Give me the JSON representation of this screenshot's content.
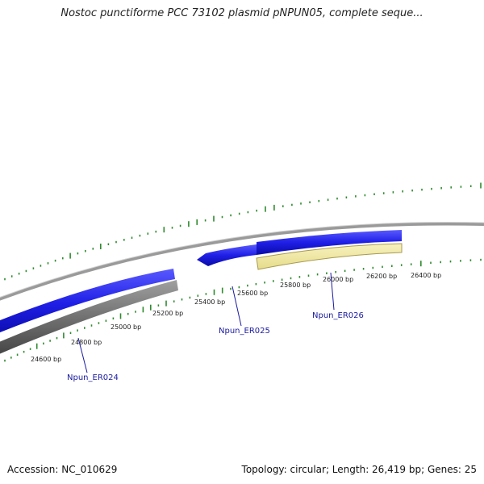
{
  "title": "Nostoc punctiforme PCC 73102 plasmid pNPUN05, complete seque...",
  "footer": {
    "accession": "Accession: NC_010629",
    "summary": "Topology: circular; Length: 26,419 bp; Genes: 25"
  },
  "colors": {
    "backbone": "#8c8c8c",
    "forward_gene": "#1f1fe6",
    "reverse_gene": "#6e6e6e",
    "highlight_gene": "#f2eba0",
    "gc_ticks": "#2e8b2e",
    "label_line": "#1a1aa0"
  },
  "scale": {
    "tick_labels": [
      "24600 bp",
      "24800 bp",
      "25000 bp",
      "25200 bp",
      "25400 bp",
      "25600 bp",
      "25800 bp",
      "26000 bp",
      "26200 bp",
      "26400 bp"
    ]
  },
  "genes": [
    {
      "name": "Npun_ER024"
    },
    {
      "name": "Npun_ER025"
    },
    {
      "name": "Npun_ER026"
    }
  ]
}
